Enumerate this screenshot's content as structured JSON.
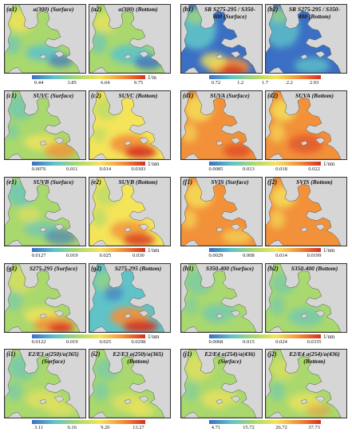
{
  "rows": [
    {
      "groups": [
        {
          "panels": [
            {
              "label": "(a1)",
              "title": "a(300) (Surface)",
              "scheme": "a1"
            },
            {
              "label": "(a2)",
              "title": "a(300) (Bottom)",
              "scheme": "a2"
            }
          ],
          "colorbar": {
            "gradient": "spectral",
            "ticks": [
              "0.44",
              "3.85",
              "6.64",
              "9.75"
            ],
            "unit": "1/m"
          }
        },
        {
          "panels": [
            {
              "label": "(b1)",
              "title": "SR S275-295 / S350-400 (Surface)",
              "scheme": "b1"
            },
            {
              "label": "(b2)",
              "title": "SR S275-295 / S350-400 (Bottom)",
              "scheme": "b2"
            }
          ],
          "colorbar": {
            "gradient": "spectral",
            "ticks": [
              "0.72",
              "1.2",
              "1.7",
              "2.2",
              "2.93"
            ],
            "unit": ""
          }
        }
      ]
    },
    {
      "groups": [
        {
          "panels": [
            {
              "label": "(c1)",
              "title": "SUVC (Surface)",
              "scheme": "c1"
            },
            {
              "label": "(c2)",
              "title": "SUVC (Bottom)",
              "scheme": "c2"
            }
          ],
          "colorbar": {
            "gradient": "spectral",
            "ticks": [
              "0.0076",
              "0.011",
              "0.014",
              "0.0183"
            ],
            "unit": "1/nm"
          }
        },
        {
          "panels": [
            {
              "label": "(d1)",
              "title": "SUVA (Surface)",
              "scheme": "d1"
            },
            {
              "label": "(d2)",
              "title": "SUVA (Bottom)",
              "scheme": "d2"
            }
          ],
          "colorbar": {
            "gradient": "spectral",
            "ticks": [
              "0.0085",
              "0.013",
              "0.018",
              "0.022"
            ],
            "unit": "1/nm"
          }
        }
      ]
    },
    {
      "groups": [
        {
          "panels": [
            {
              "label": "(e1)",
              "title": "SUVB (Surface)",
              "scheme": "e1"
            },
            {
              "label": "(e2)",
              "title": "SUVB (Bottom)",
              "scheme": "e2"
            }
          ],
          "colorbar": {
            "gradient": "spectral",
            "ticks": [
              "0.0127",
              "0.019",
              "0.025",
              "0.030"
            ],
            "unit": "1/nm"
          }
        },
        {
          "panels": [
            {
              "label": "(f1)",
              "title": "SVIS (Surface)",
              "scheme": "f1"
            },
            {
              "label": "(f2)",
              "title": "SVIS (Bottom)",
              "scheme": "f2"
            }
          ],
          "colorbar": {
            "gradient": "spectral",
            "ticks": [
              "0.0029",
              "0.008",
              "0.014",
              "0.0199"
            ],
            "unit": "1/nm"
          }
        }
      ]
    },
    {
      "groups": [
        {
          "panels": [
            {
              "label": "(g1)",
              "title": "S275-295 (Surface)",
              "scheme": "g1"
            },
            {
              "label": "(g2)",
              "title": "S275-295 (Bottom)",
              "scheme": "g2"
            }
          ],
          "colorbar": {
            "gradient": "spectral",
            "ticks": [
              "0.0122",
              "0.019",
              "0.025",
              "0.0298"
            ],
            "unit": "1/nm"
          }
        },
        {
          "panels": [
            {
              "label": "(h1)",
              "title": "S350-400 (Surface)",
              "scheme": "h1"
            },
            {
              "label": "(h2)",
              "title": "S350-400 (Bottom)",
              "scheme": "h2"
            }
          ],
          "colorbar": {
            "gradient": "spectral",
            "ticks": [
              "0.0068",
              "0.015",
              "0.024",
              "0.0335"
            ],
            "unit": "1/nm"
          }
        }
      ]
    },
    {
      "groups": [
        {
          "panels": [
            {
              "label": "(i1)",
              "title": "E2/E3 a(250)/a(365) (Surface)",
              "scheme": "i1"
            },
            {
              "label": "(i2)",
              "title": "E2/E3 a(250)/a(365) (Bottom)",
              "scheme": "i2"
            }
          ],
          "colorbar": {
            "gradient": "spectral",
            "ticks": [
              "3.11",
              "6.16",
              "9.20",
              "13.27"
            ],
            "unit": ""
          }
        },
        {
          "panels": [
            {
              "label": "(j1)",
              "title": "E2/E4 a(254)/a(436) (Surface)",
              "scheme": "j1"
            },
            {
              "label": "(j2)",
              "title": "E2/E4 a(254)/a(436) (Bottom)",
              "scheme": "j2"
            }
          ],
          "colorbar": {
            "gradient": "spectral",
            "ticks": [
              "4.71",
              "15.72",
              "26.72",
              "37.73"
            ],
            "unit": ""
          }
        }
      ]
    }
  ],
  "colors": {
    "land": "#d6d6d6",
    "coast": "#555555",
    "low": "#3b6fc4",
    "cyan": "#5fc3c8",
    "green": "#a9d86e",
    "yellow": "#f4e45a",
    "orange": "#f2913a",
    "red": "#d7301f"
  }
}
